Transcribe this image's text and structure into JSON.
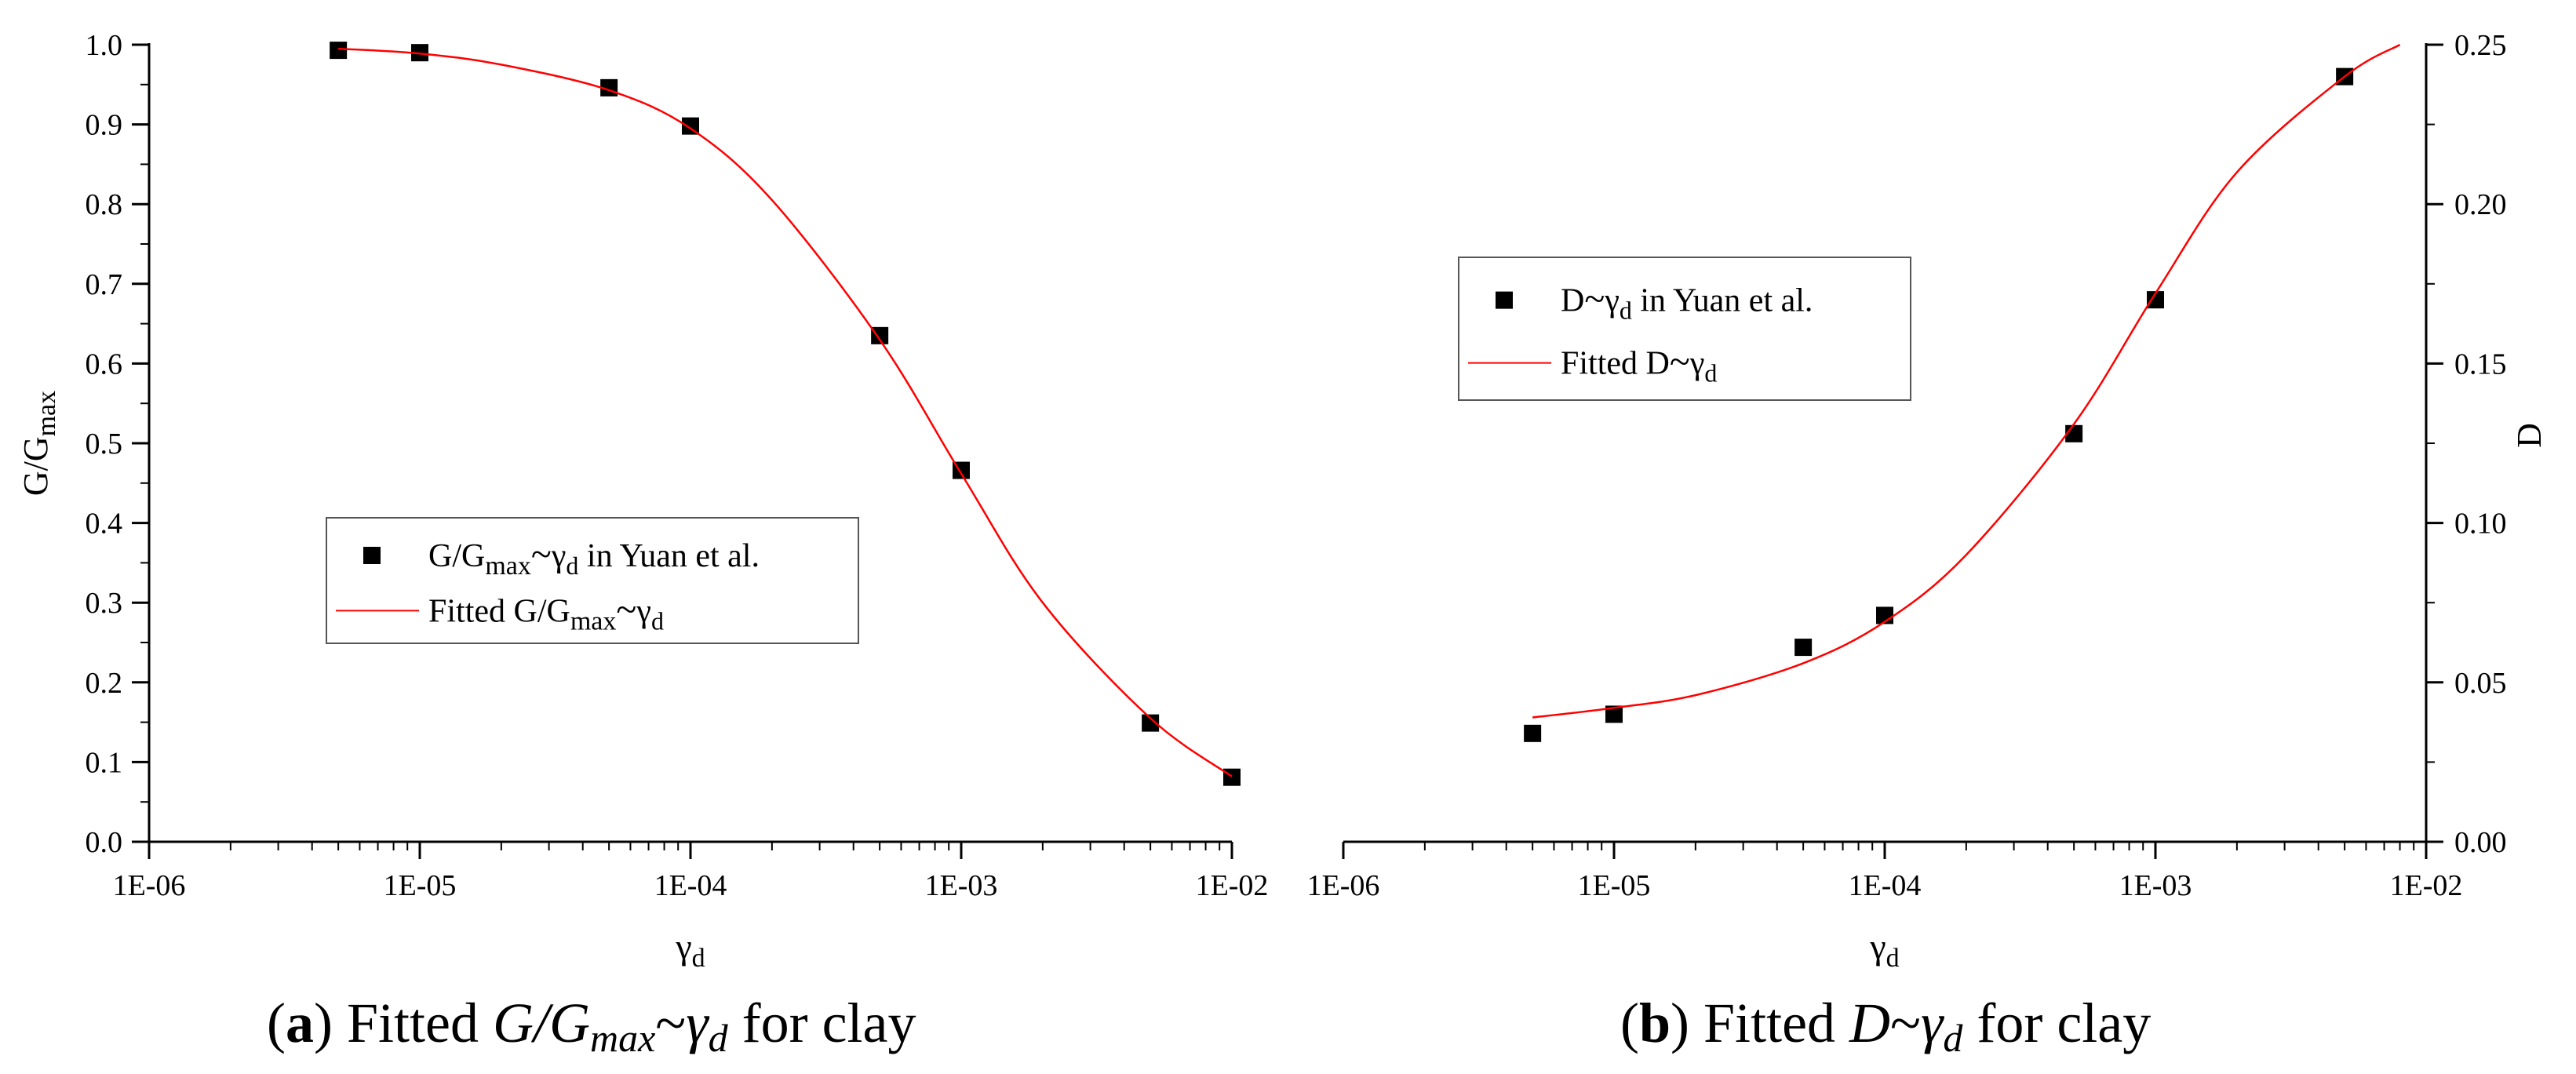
{
  "chart_data": [
    {
      "type": "scatter",
      "panel": "a",
      "caption_label": "a",
      "caption_text": "Fitted G/Gmax~γd for clay",
      "caption_parts": {
        "prefix": "Fitted ",
        "expr_main": "G/G",
        "expr_sub": "max",
        "tilde": "~",
        "gamma": "γ",
        "gamma_sub": "d",
        "suffix": " for clay"
      },
      "xlabel": "γd",
      "xlabel_parts": {
        "main": "γ",
        "sub": "d"
      },
      "ylabel": "G/Gmax",
      "ylabel_parts": {
        "main": "G/G",
        "sub": "max"
      },
      "xscale": "log",
      "xlim": [
        1e-06,
        0.01
      ],
      "ylim": [
        0.0,
        1.0
      ],
      "x_tick_labels": [
        "1E-06",
        "1E-05",
        "1E-04",
        "1E-03",
        "1E-02"
      ],
      "y_tick_labels": [
        "0.0",
        "0.1",
        "0.2",
        "0.3",
        "0.4",
        "0.5",
        "0.6",
        "0.7",
        "0.8",
        "0.9",
        "1.0"
      ],
      "legend_position": "center-left",
      "series": [
        {
          "name": "G/Gmax~γd in Yuan et al.",
          "legend_parts": {
            "main": "G/G",
            "sub": "max",
            "tilde": "~",
            "gamma": "γ",
            "gamma_sub": "d",
            "tail": " in Yuan et al."
          },
          "kind": "points",
          "color": "#000000",
          "x": [
            5e-06,
            1e-05,
            5e-05,
            0.0001,
            0.0005,
            0.001,
            0.005,
            0.01
          ],
          "y": [
            0.993,
            0.99,
            0.946,
            0.898,
            0.635,
            0.466,
            0.149,
            0.081
          ]
        },
        {
          "name": "Fitted G/Gmax~γd",
          "legend_parts": {
            "head": "Fitted ",
            "main": "G/G",
            "sub": "max",
            "tilde": "~",
            "gamma": "γ",
            "gamma_sub": "d"
          },
          "kind": "line",
          "color": "#ff0000",
          "x": [
            5e-06,
            1e-05,
            2e-05,
            5e-05,
            0.0001,
            0.0002,
            0.0005,
            0.001,
            0.002,
            0.005,
            0.01
          ],
          "y": [
            0.995,
            0.989,
            0.975,
            0.943,
            0.895,
            0.805,
            0.63,
            0.462,
            0.3,
            0.155,
            0.082
          ]
        }
      ]
    },
    {
      "type": "scatter",
      "panel": "b",
      "caption_label": "b",
      "caption_text": "Fitted D~γd for clay",
      "caption_parts": {
        "prefix": "Fitted ",
        "expr_main": "D",
        "tilde": "~",
        "gamma": "γ",
        "gamma_sub": "d",
        "suffix": " for clay"
      },
      "xlabel": "γd",
      "xlabel_parts": {
        "main": "γ",
        "sub": "d"
      },
      "ylabel": "D",
      "xscale": "log",
      "xlim": [
        1e-06,
        0.01
      ],
      "ylim": [
        0.0,
        0.25
      ],
      "x_tick_labels": [
        "1E-06",
        "1E-05",
        "1E-04",
        "1E-03",
        "1E-02"
      ],
      "y_tick_labels": [
        "0.00",
        "0.05",
        "0.10",
        "0.15",
        "0.20",
        "0.25"
      ],
      "legend_position": "top-left",
      "series": [
        {
          "name": "D~γd in Yuan et al.",
          "legend_parts": {
            "main": "D",
            "tilde": "~",
            "gamma": "γ",
            "gamma_sub": "d",
            "tail": " in Yuan et al."
          },
          "kind": "points",
          "color": "#000000",
          "x": [
            5e-06,
            1e-05,
            5e-05,
            0.0001,
            0.0005,
            0.001,
            0.005
          ],
          "y": [
            0.034,
            0.04,
            0.061,
            0.071,
            0.128,
            0.17,
            0.24
          ]
        },
        {
          "name": "Fitted D~γd",
          "legend_parts": {
            "head": "Fitted ",
            "main": "D",
            "tilde": "~",
            "gamma": "γ",
            "gamma_sub": "d"
          },
          "kind": "line",
          "color": "#ff0000",
          "x": [
            5e-06,
            1e-05,
            2e-05,
            5e-05,
            0.0001,
            0.0002,
            0.0005,
            0.001,
            0.002,
            0.005,
            0.008
          ],
          "y": [
            0.039,
            0.042,
            0.046,
            0.056,
            0.069,
            0.09,
            0.131,
            0.172,
            0.21,
            0.24,
            0.25
          ]
        }
      ]
    }
  ]
}
